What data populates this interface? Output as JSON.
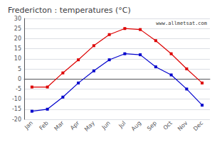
{
  "chart_data": {
    "type": "line",
    "title": "Fredericton : temperatures (°C)",
    "categories": [
      "Jan",
      "Feb",
      "Mar",
      "Apr",
      "May",
      "Jun",
      "Jul",
      "Aug",
      "Sep",
      "Oct",
      "Nov",
      "Dec"
    ],
    "series": [
      {
        "color": "#dd0000",
        "values": [
          -4,
          -4,
          3,
          9.5,
          16.5,
          22,
          25,
          24.5,
          19,
          12.5,
          5,
          -2
        ]
      },
      {
        "color": "#0000cc",
        "values": [
          -16,
          -15,
          -9,
          -2,
          4,
          9.5,
          12.5,
          12,
          6,
          2,
          -5,
          -13
        ]
      }
    ],
    "ylim": [
      -20,
      30
    ],
    "yticks": [
      -20,
      -15,
      -10,
      -5,
      0,
      5,
      10,
      15,
      20,
      25,
      30
    ],
    "grid": true,
    "marker": "square",
    "annotation": "www.allmetsat.com"
  }
}
